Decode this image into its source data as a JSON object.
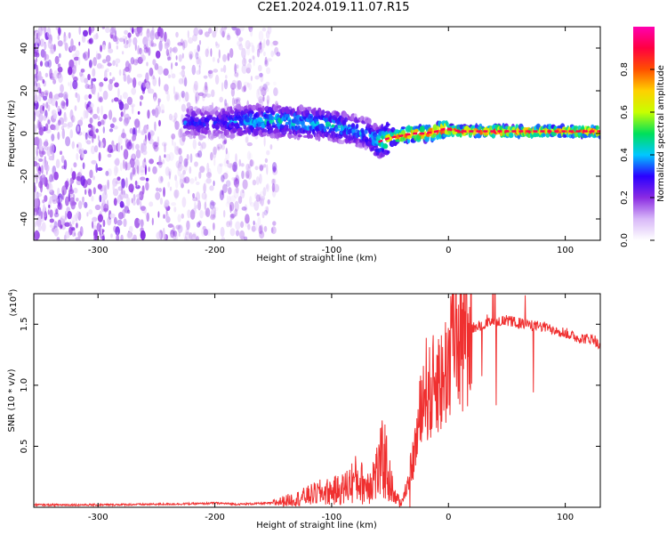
{
  "title": "C2E1.2024.019.11.07.R15",
  "colorbar": {
    "label": "Normalized spectral amplitude",
    "ticks": [
      "0.0",
      "0.2",
      "0.4",
      "0.6",
      "0.8"
    ],
    "tick_values": [
      0.0,
      0.2,
      0.4,
      0.6,
      0.8
    ],
    "range": [
      0,
      1
    ],
    "colormap": [
      "#ffffff",
      "#d8b8f8",
      "#8a2be2",
      "#2a00ff",
      "#00c8ff",
      "#00e05a",
      "#c8ff00",
      "#ffd000",
      "#ff5000",
      "#ff0040",
      "#ff00b0"
    ]
  },
  "chart_data": [
    {
      "type": "heatmap",
      "title": "",
      "xlabel": "Height of straight line (km)",
      "ylabel": "Frequency (Hz)",
      "xlim": [
        -355,
        130
      ],
      "ylim": [
        -50,
        50
      ],
      "xticks": [
        -300,
        -200,
        -100,
        0,
        100
      ],
      "yticks": [
        -40,
        -20,
        0,
        20,
        40
      ],
      "grid": false,
      "ridge": {
        "x": [
          -225,
          -200,
          -170,
          -150,
          -120,
          -100,
          -85,
          -70,
          -60,
          -50,
          -40,
          -30,
          -20,
          -10,
          -5,
          0,
          10,
          30,
          60,
          100,
          130
        ],
        "frequency": [
          5,
          5,
          6,
          6,
          5,
          4,
          2,
          0,
          -4,
          -2,
          -1,
          0,
          0,
          1,
          2,
          2,
          1,
          1,
          1,
          1,
          1
        ],
        "amplitude": [
          0.35,
          0.3,
          0.45,
          0.45,
          0.45,
          0.45,
          0.4,
          0.4,
          0.5,
          0.7,
          0.8,
          0.85,
          0.9,
          0.95,
          1.0,
          0.95,
          0.9,
          0.85,
          0.85,
          0.85,
          0.85
        ]
      },
      "noise_region": {
        "x_from": -355,
        "x_to": -170,
        "amplitude": 0.15
      }
    },
    {
      "type": "line",
      "title": "",
      "xlabel": "Height of straight line (km)",
      "ylabel": "SNR (10 * v/v)",
      "y_multiplier_label": "(x10",
      "y_multiplier_exp": "4",
      "y_multiplier_close": ")",
      "xlim": [
        -355,
        130
      ],
      "ylim": [
        0,
        17500
      ],
      "xticks": [
        -300,
        -200,
        -100,
        0,
        100
      ],
      "yticks": [
        0.5,
        1.0,
        1.5
      ],
      "ytick_labels": [
        "0.5",
        "1.0",
        "1.5"
      ],
      "grid": false,
      "color": "#f03030",
      "series": [
        {
          "x": [
            -355,
            -300,
            -250,
            -210,
            -200,
            -180,
            -150,
            -130,
            -110,
            -100,
            -90,
            -80,
            -70,
            -60,
            -55,
            -50,
            -45,
            -40,
            -35,
            -30,
            -25,
            -20,
            -15,
            -10,
            -5,
            0,
            5,
            10,
            15,
            20,
            30,
            40,
            50,
            60,
            70,
            80,
            90,
            100,
            110,
            120,
            125,
            130
          ],
          "y": [
            200,
            200,
            250,
            300,
            350,
            250,
            350,
            700,
            1200,
            1300,
            1500,
            2300,
            1800,
            3000,
            4200,
            2000,
            800,
            400,
            2000,
            4000,
            7000,
            10000,
            9000,
            11000,
            10000,
            12500,
            14000,
            14500,
            14000,
            14700,
            15000,
            15200,
            15300,
            15100,
            14900,
            14800,
            14600,
            14300,
            13900,
            13800,
            13800,
            13000
          ]
        }
      ]
    }
  ]
}
